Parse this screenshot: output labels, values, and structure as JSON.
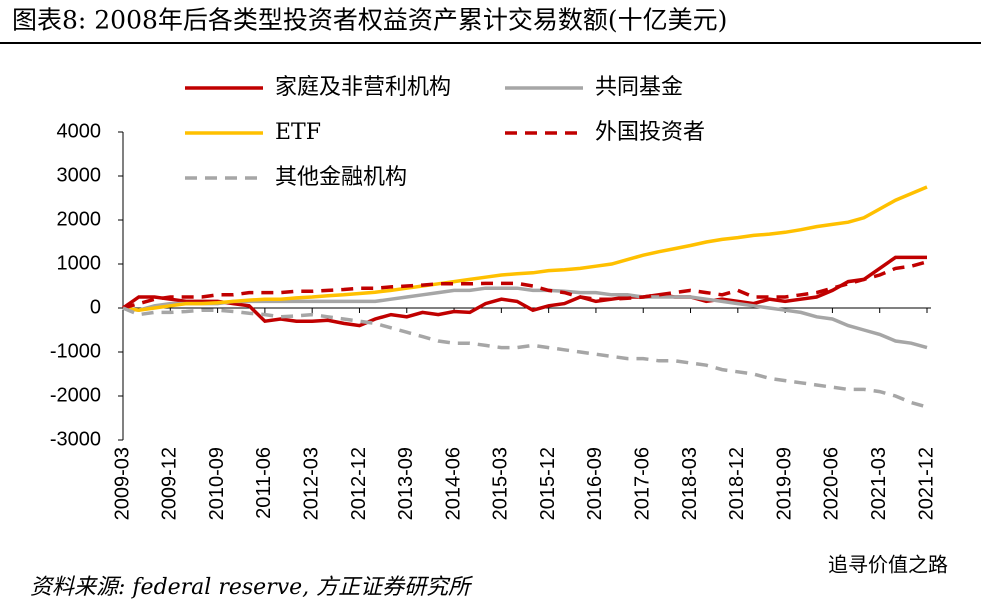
{
  "chart_data": {
    "type": "line",
    "title": "图表8:  2008年后各类型投资者权益资产累计交易数额(十亿美元)",
    "source": "资料来源: federal reserve, 方正证券研究所",
    "watermark": "追寻价值之路",
    "categories": [
      "2009-03",
      null,
      null,
      "2009-12",
      null,
      null,
      "2010-09",
      null,
      null,
      "2011-06",
      null,
      null,
      "2012-03",
      null,
      null,
      "2012-12",
      null,
      null,
      "2013-09",
      null,
      null,
      "2014-06",
      null,
      null,
      "2015-03",
      null,
      null,
      "2015-12",
      null,
      null,
      "2016-09",
      null,
      null,
      "2017-06",
      null,
      null,
      "2018-03",
      null,
      null,
      "2018-12",
      null,
      null,
      "2019-09",
      null,
      null,
      "2020-06",
      null,
      null,
      "2021-03",
      null,
      null,
      "2021-12"
    ],
    "ylim": [
      -3000,
      4000
    ],
    "yticks": [
      -3000,
      -2000,
      -1000,
      0,
      1000,
      2000,
      3000,
      4000
    ],
    "series": [
      {
        "name": "家庭及非营利机构",
        "color": "#c00000",
        "dashed": false,
        "values": [
          0,
          250,
          250,
          200,
          150,
          150,
          150,
          100,
          50,
          -300,
          -250,
          -300,
          -300,
          -280,
          -350,
          -400,
          -250,
          -150,
          -200,
          -100,
          -150,
          -80,
          -100,
          100,
          200,
          150,
          -50,
          50,
          100,
          250,
          150,
          200,
          250,
          250,
          300,
          250,
          250,
          150,
          200,
          150,
          100,
          200,
          150,
          200,
          250,
          400,
          600,
          650,
          900,
          1150,
          1150,
          1150
        ]
      },
      {
        "name": "共同基金",
        "color": "#a6a6a6",
        "dashed": false,
        "values": [
          0,
          -50,
          50,
          100,
          100,
          100,
          100,
          150,
          150,
          150,
          150,
          150,
          150,
          150,
          150,
          150,
          150,
          200,
          250,
          300,
          350,
          400,
          400,
          450,
          450,
          450,
          400,
          400,
          380,
          350,
          350,
          300,
          300,
          250,
          250,
          250,
          250,
          200,
          150,
          100,
          50,
          0,
          -50,
          -100,
          -200,
          -250,
          -400,
          -500,
          -600,
          -750,
          -800,
          -900
        ]
      },
      {
        "name": "ETF",
        "color": "#ffc000",
        "dashed": false,
        "values": [
          0,
          -50,
          0,
          50,
          100,
          100,
          120,
          150,
          180,
          200,
          200,
          230,
          250,
          280,
          300,
          330,
          360,
          400,
          450,
          500,
          550,
          600,
          650,
          700,
          750,
          780,
          800,
          850,
          870,
          900,
          950,
          1000,
          1100,
          1200,
          1280,
          1350,
          1420,
          1500,
          1560,
          1600,
          1650,
          1680,
          1720,
          1780,
          1850,
          1900,
          1950,
          2050,
          2250,
          2450,
          2600,
          2750
        ]
      },
      {
        "name": "外国投资者",
        "color": "#c00000",
        "dashed": true,
        "values": [
          0,
          100,
          200,
          250,
          250,
          250,
          300,
          300,
          350,
          350,
          350,
          380,
          380,
          400,
          420,
          450,
          450,
          480,
          500,
          520,
          550,
          550,
          550,
          560,
          560,
          560,
          500,
          400,
          350,
          250,
          200,
          200,
          220,
          250,
          300,
          350,
          400,
          350,
          300,
          400,
          250,
          250,
          250,
          300,
          350,
          450,
          550,
          650,
          750,
          900,
          950,
          1050
        ]
      },
      {
        "name": "其他金融机构",
        "color": "#a6a6a6",
        "dashed": true,
        "values": [
          0,
          -150,
          -100,
          -100,
          -80,
          -50,
          -50,
          -80,
          -120,
          -150,
          -200,
          -180,
          -150,
          -200,
          -250,
          -300,
          -350,
          -450,
          -550,
          -650,
          -750,
          -800,
          -800,
          -850,
          -900,
          -900,
          -850,
          -900,
          -950,
          -1000,
          -1050,
          -1100,
          -1150,
          -1150,
          -1200,
          -1200,
          -1250,
          -1300,
          -1400,
          -1450,
          -1500,
          -1600,
          -1650,
          -1700,
          -1750,
          -1800,
          -1850,
          -1850,
          -1900,
          -2000,
          -2150,
          -2250
        ]
      }
    ]
  }
}
